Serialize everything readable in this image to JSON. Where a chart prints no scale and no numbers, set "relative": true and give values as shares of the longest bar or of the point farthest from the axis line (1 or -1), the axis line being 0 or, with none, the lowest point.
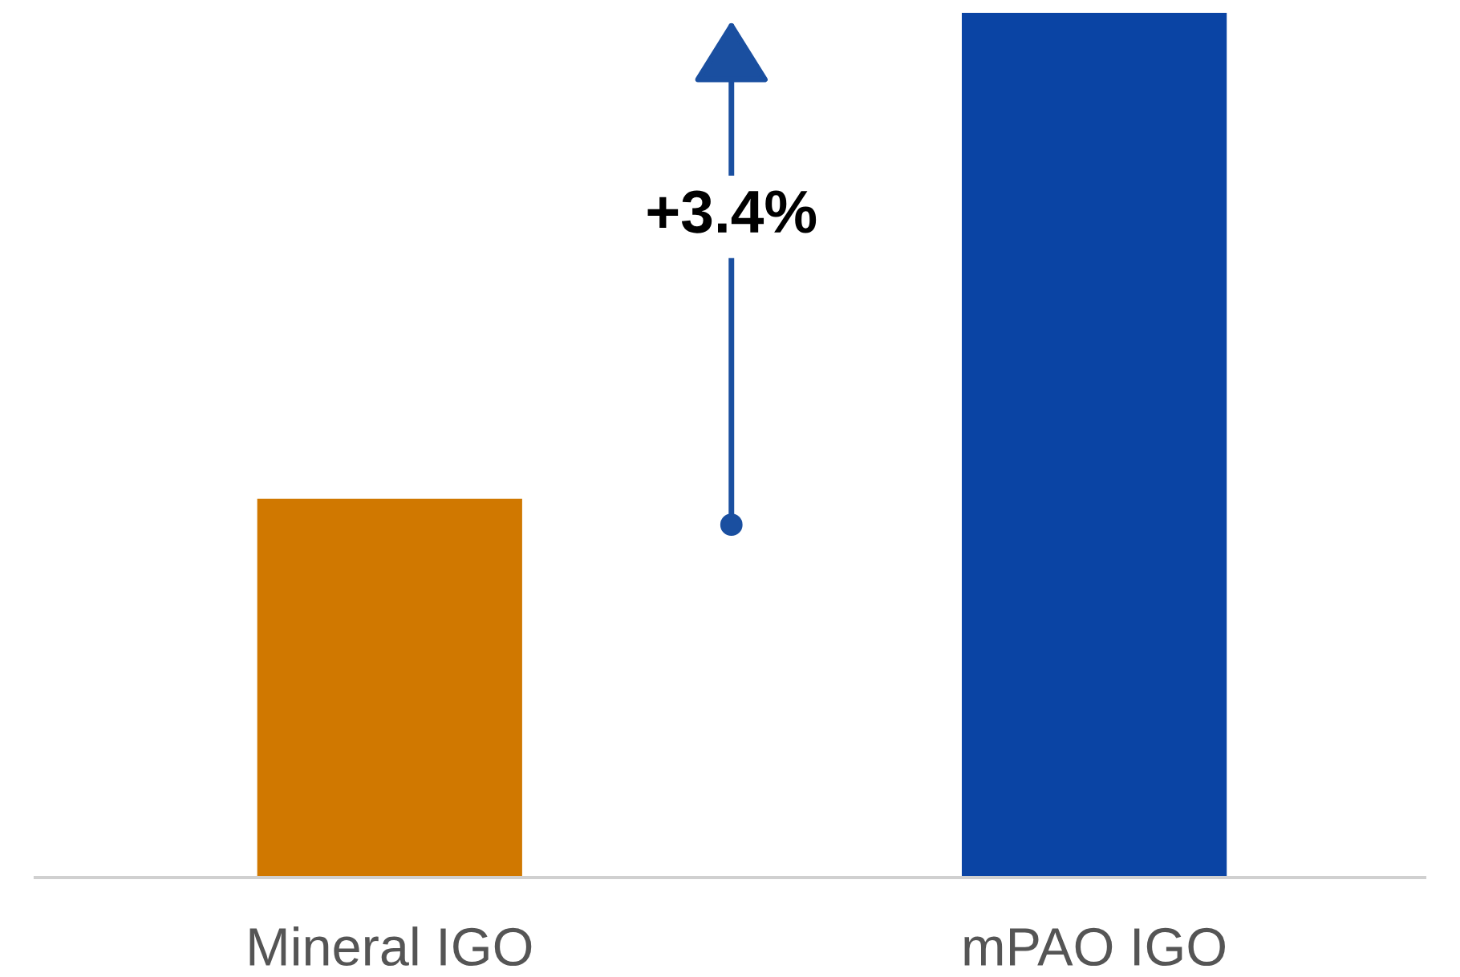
{
  "chart_data": {
    "type": "bar",
    "relative": true,
    "categories": [
      "Mineral IGO",
      "mPAO IGO"
    ],
    "values": [
      0.438,
      1
    ],
    "colors": [
      "#d07800",
      "#0a44a4"
    ],
    "annotations": [
      "+3.4%"
    ],
    "grid": false,
    "legend": false
  }
}
